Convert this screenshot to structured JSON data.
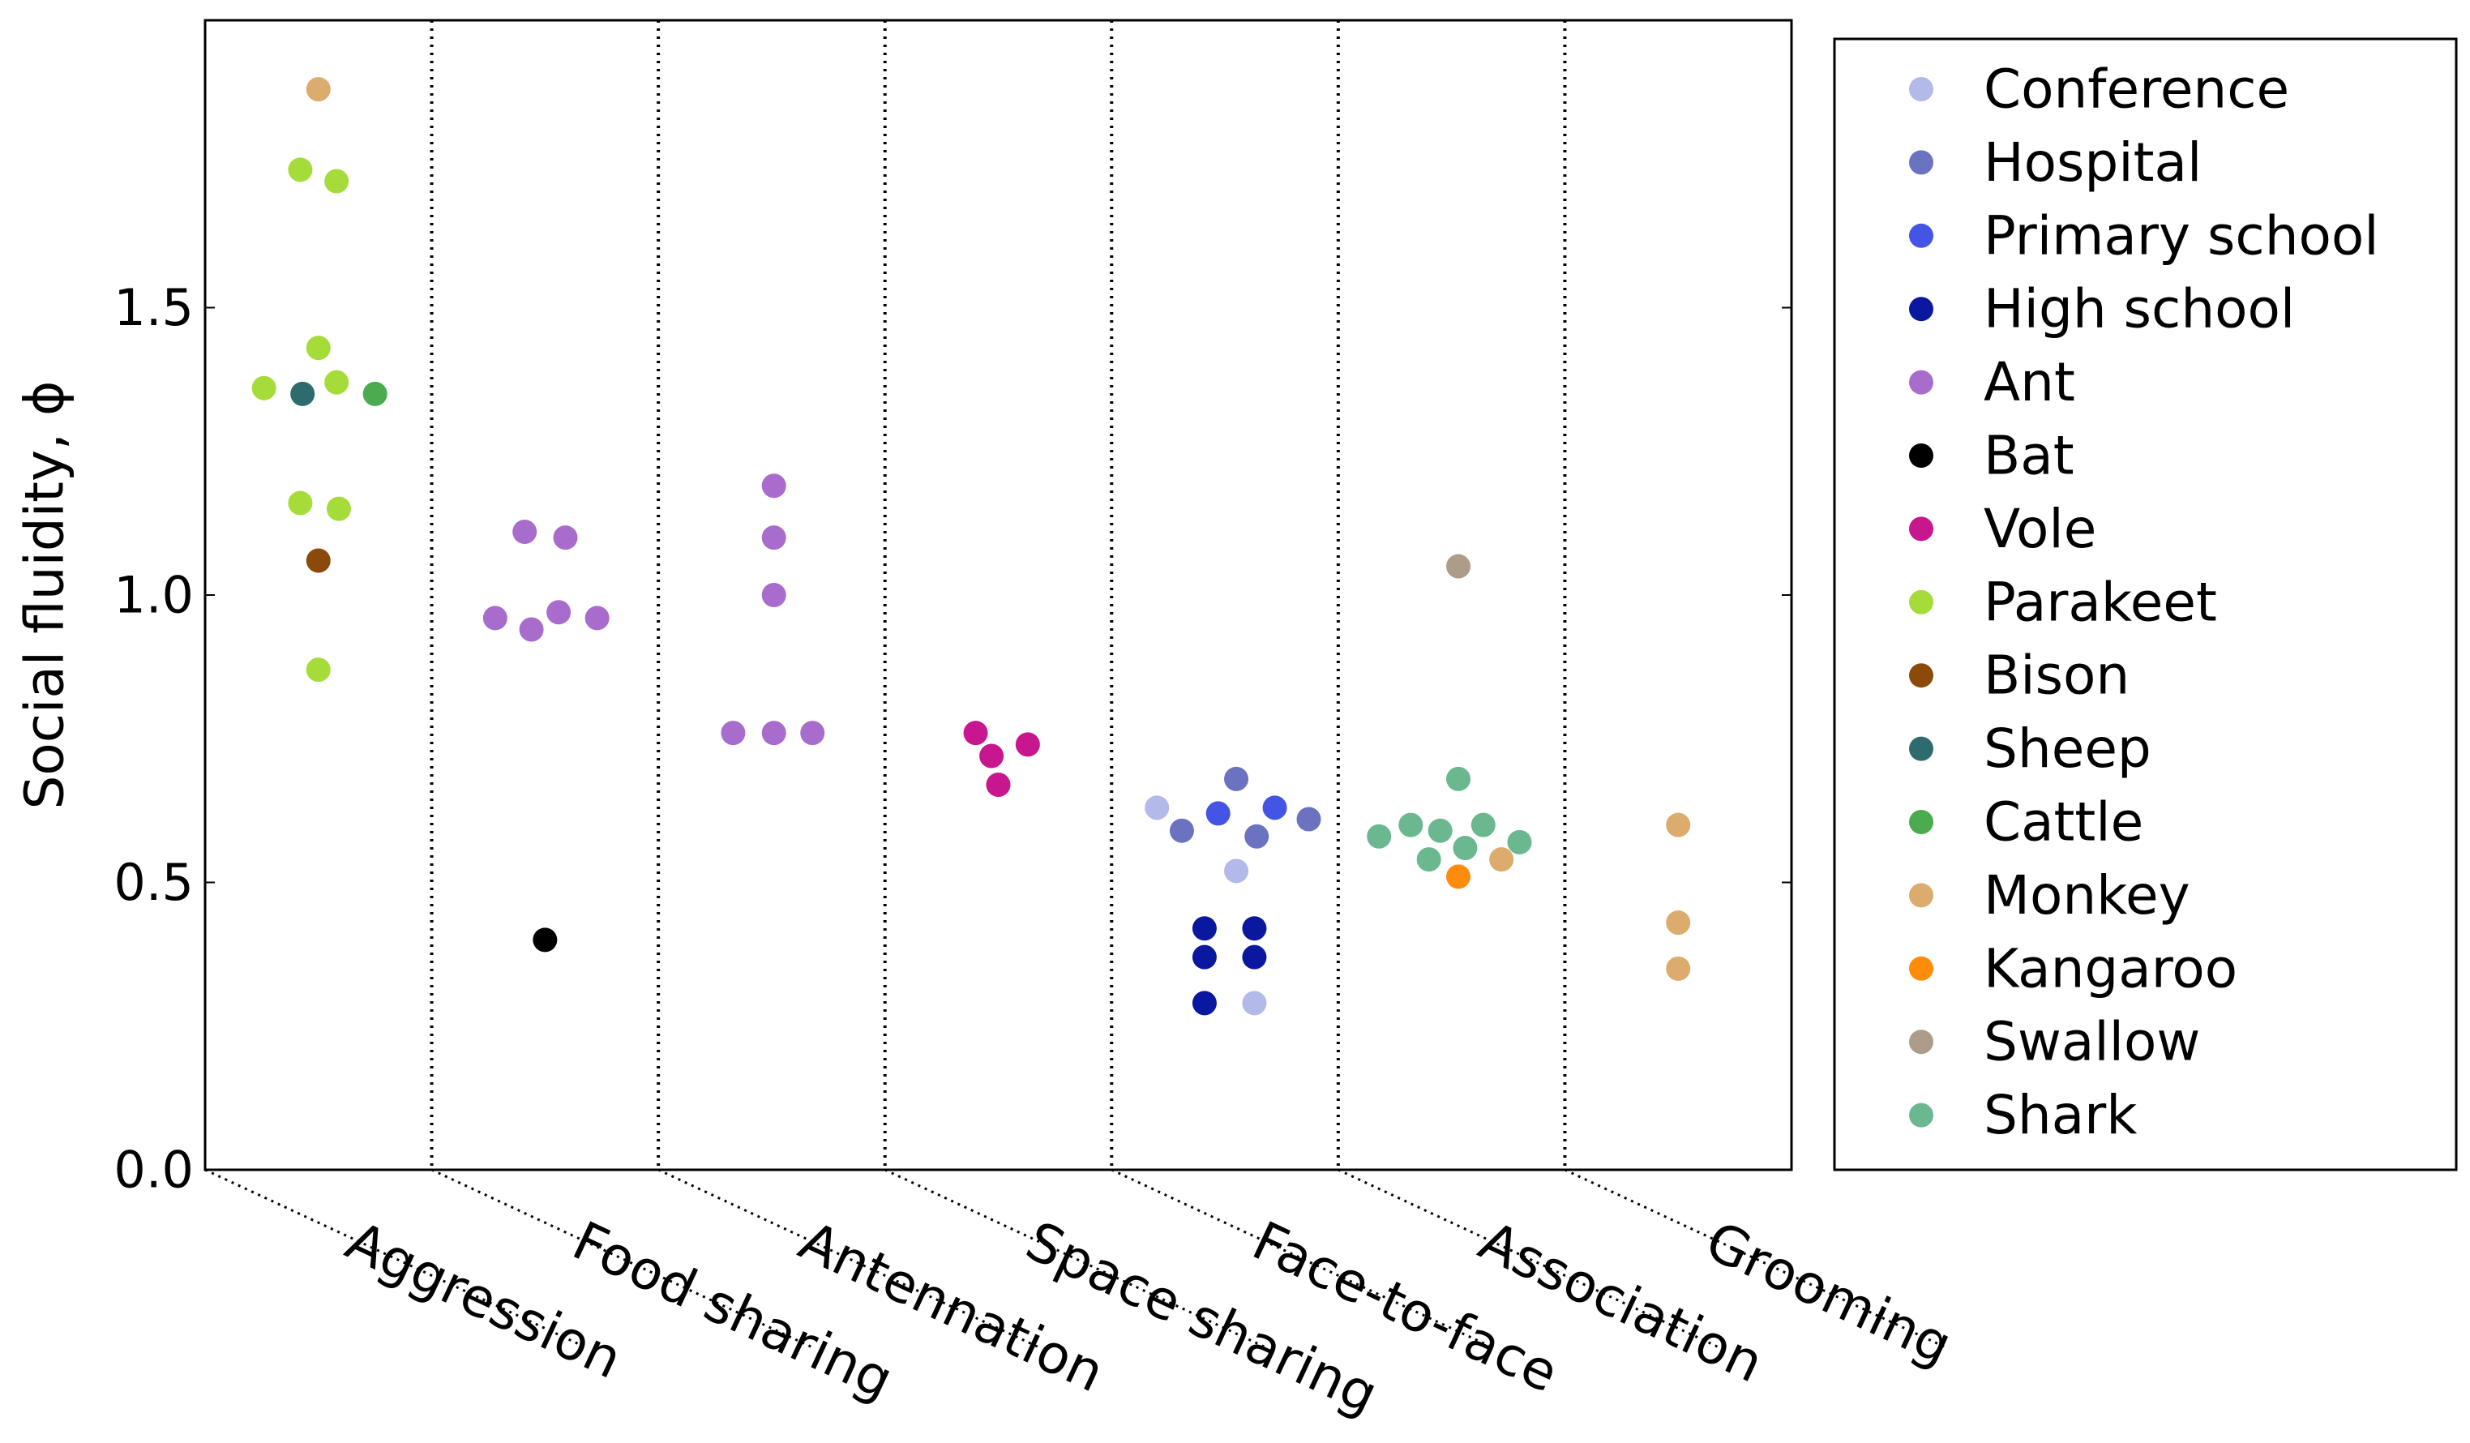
{
  "chart_data": {
    "type": "scatter",
    "ylabel": "Social fluidity, ϕ",
    "ylim": [
      0,
      2.0
    ],
    "yticks": [
      0.0,
      0.5,
      1.0,
      1.5
    ],
    "ytick_labels": [
      "0.0",
      "0.5",
      "1.0",
      "1.5"
    ],
    "categories": [
      "Aggression",
      "Food sharing",
      "Antennation",
      "Space sharing",
      "Face-to-face",
      "Association",
      "Grooming"
    ],
    "legend_position": "right",
    "series": [
      {
        "name": "Conference",
        "color": "#b3b9e8",
        "points": [
          {
            "category": "Face-to-face",
            "offset": -0.3,
            "y": 0.63
          },
          {
            "category": "Face-to-face",
            "offset": 0.05,
            "y": 0.52
          },
          {
            "category": "Face-to-face",
            "offset": 0.13,
            "y": 0.29
          }
        ]
      },
      {
        "name": "Hospital",
        "color": "#6b72c0",
        "points": [
          {
            "category": "Face-to-face",
            "offset": -0.19,
            "y": 0.59
          },
          {
            "category": "Face-to-face",
            "offset": 0.05,
            "y": 0.68
          },
          {
            "category": "Face-to-face",
            "offset": 0.14,
            "y": 0.58
          },
          {
            "category": "Face-to-face",
            "offset": 0.37,
            "y": 0.61
          }
        ]
      },
      {
        "name": "Primary school",
        "color": "#4455e6",
        "points": [
          {
            "category": "Face-to-face",
            "offset": -0.03,
            "y": 0.62
          },
          {
            "category": "Face-to-face",
            "offset": 0.22,
            "y": 0.63
          }
        ]
      },
      {
        "name": "High school",
        "color": "#0a18a0",
        "points": [
          {
            "category": "Face-to-face",
            "offset": -0.09,
            "y": 0.42
          },
          {
            "category": "Face-to-face",
            "offset": 0.13,
            "y": 0.42
          },
          {
            "category": "Face-to-face",
            "offset": -0.09,
            "y": 0.37
          },
          {
            "category": "Face-to-face",
            "offset": 0.13,
            "y": 0.37
          },
          {
            "category": "Face-to-face",
            "offset": -0.09,
            "y": 0.29
          }
        ]
      },
      {
        "name": "Ant",
        "color": "#a86ccc",
        "points": [
          {
            "category": "Food sharing",
            "offset": -0.22,
            "y": 0.96
          },
          {
            "category": "Food sharing",
            "offset": -0.09,
            "y": 1.11
          },
          {
            "category": "Food sharing",
            "offset": -0.06,
            "y": 0.94
          },
          {
            "category": "Food sharing",
            "offset": 0.06,
            "y": 0.97
          },
          {
            "category": "Food sharing",
            "offset": 0.09,
            "y": 1.1
          },
          {
            "category": "Food sharing",
            "offset": 0.23,
            "y": 0.96
          },
          {
            "category": "Antennation",
            "offset": -0.17,
            "y": 0.76
          },
          {
            "category": "Antennation",
            "offset": 0.01,
            "y": 1.19
          },
          {
            "category": "Antennation",
            "offset": 0.01,
            "y": 1.1
          },
          {
            "category": "Antennation",
            "offset": 0.01,
            "y": 1.0
          },
          {
            "category": "Antennation",
            "offset": 0.01,
            "y": 0.76
          },
          {
            "category": "Antennation",
            "offset": 0.18,
            "y": 0.76
          }
        ]
      },
      {
        "name": "Bat",
        "color": "#000000",
        "points": [
          {
            "category": "Food sharing",
            "offset": 0.0,
            "y": 0.4
          }
        ]
      },
      {
        "name": "Vole",
        "color": "#c8168e",
        "points": [
          {
            "category": "Space sharing",
            "offset": -0.1,
            "y": 0.76
          },
          {
            "category": "Space sharing",
            "offset": -0.03,
            "y": 0.72
          },
          {
            "category": "Space sharing",
            "offset": 0.0,
            "y": 0.67
          },
          {
            "category": "Space sharing",
            "offset": 0.13,
            "y": 0.74
          }
        ]
      },
      {
        "name": "Parakeet",
        "color": "#a6dc3a",
        "points": [
          {
            "category": "Aggression",
            "offset": -0.08,
            "y": 1.74
          },
          {
            "category": "Aggression",
            "offset": 0.08,
            "y": 1.72
          },
          {
            "category": "Aggression",
            "offset": 0.0,
            "y": 1.43
          },
          {
            "category": "Aggression",
            "offset": -0.24,
            "y": 1.36
          },
          {
            "category": "Aggression",
            "offset": 0.08,
            "y": 1.37
          },
          {
            "category": "Aggression",
            "offset": -0.08,
            "y": 1.16
          },
          {
            "category": "Aggression",
            "offset": 0.09,
            "y": 1.15
          },
          {
            "category": "Aggression",
            "offset": 0.0,
            "y": 0.87
          }
        ]
      },
      {
        "name": "Bison",
        "color": "#8c4a0a",
        "points": [
          {
            "category": "Aggression",
            "offset": 0.0,
            "y": 1.06
          }
        ]
      },
      {
        "name": "Sheep",
        "color": "#2e6b6e",
        "points": [
          {
            "category": "Aggression",
            "offset": -0.07,
            "y": 1.35
          }
        ]
      },
      {
        "name": "Cattle",
        "color": "#4aac4e",
        "points": [
          {
            "category": "Aggression",
            "offset": 0.25,
            "y": 1.35
          }
        ]
      },
      {
        "name": "Monkey",
        "color": "#dbac6e",
        "points": [
          {
            "category": "Aggression",
            "offset": 0.0,
            "y": 1.88
          },
          {
            "category": "Association",
            "offset": 0.22,
            "y": 0.54
          },
          {
            "category": "Grooming",
            "offset": 0.0,
            "y": 0.6
          },
          {
            "category": "Grooming",
            "offset": 0.0,
            "y": 0.43
          },
          {
            "category": "Grooming",
            "offset": 0.0,
            "y": 0.35
          }
        ]
      },
      {
        "name": "Kangaroo",
        "color": "#ff8c0a",
        "points": [
          {
            "category": "Association",
            "offset": 0.03,
            "y": 0.51
          }
        ]
      },
      {
        "name": "Swallow",
        "color": "#ad9c8a",
        "points": [
          {
            "category": "Association",
            "offset": 0.03,
            "y": 1.05
          }
        ]
      },
      {
        "name": "Shark",
        "color": "#6bb890",
        "points": [
          {
            "category": "Association",
            "offset": -0.32,
            "y": 0.58
          },
          {
            "category": "Association",
            "offset": -0.18,
            "y": 0.6
          },
          {
            "category": "Association",
            "offset": -0.05,
            "y": 0.59
          },
          {
            "category": "Association",
            "offset": 0.03,
            "y": 0.68
          },
          {
            "category": "Association",
            "offset": -0.1,
            "y": 0.54
          },
          {
            "category": "Association",
            "offset": 0.06,
            "y": 0.56
          },
          {
            "category": "Association",
            "offset": 0.14,
            "y": 0.6
          },
          {
            "category": "Association",
            "offset": 0.3,
            "y": 0.57
          }
        ]
      }
    ]
  }
}
